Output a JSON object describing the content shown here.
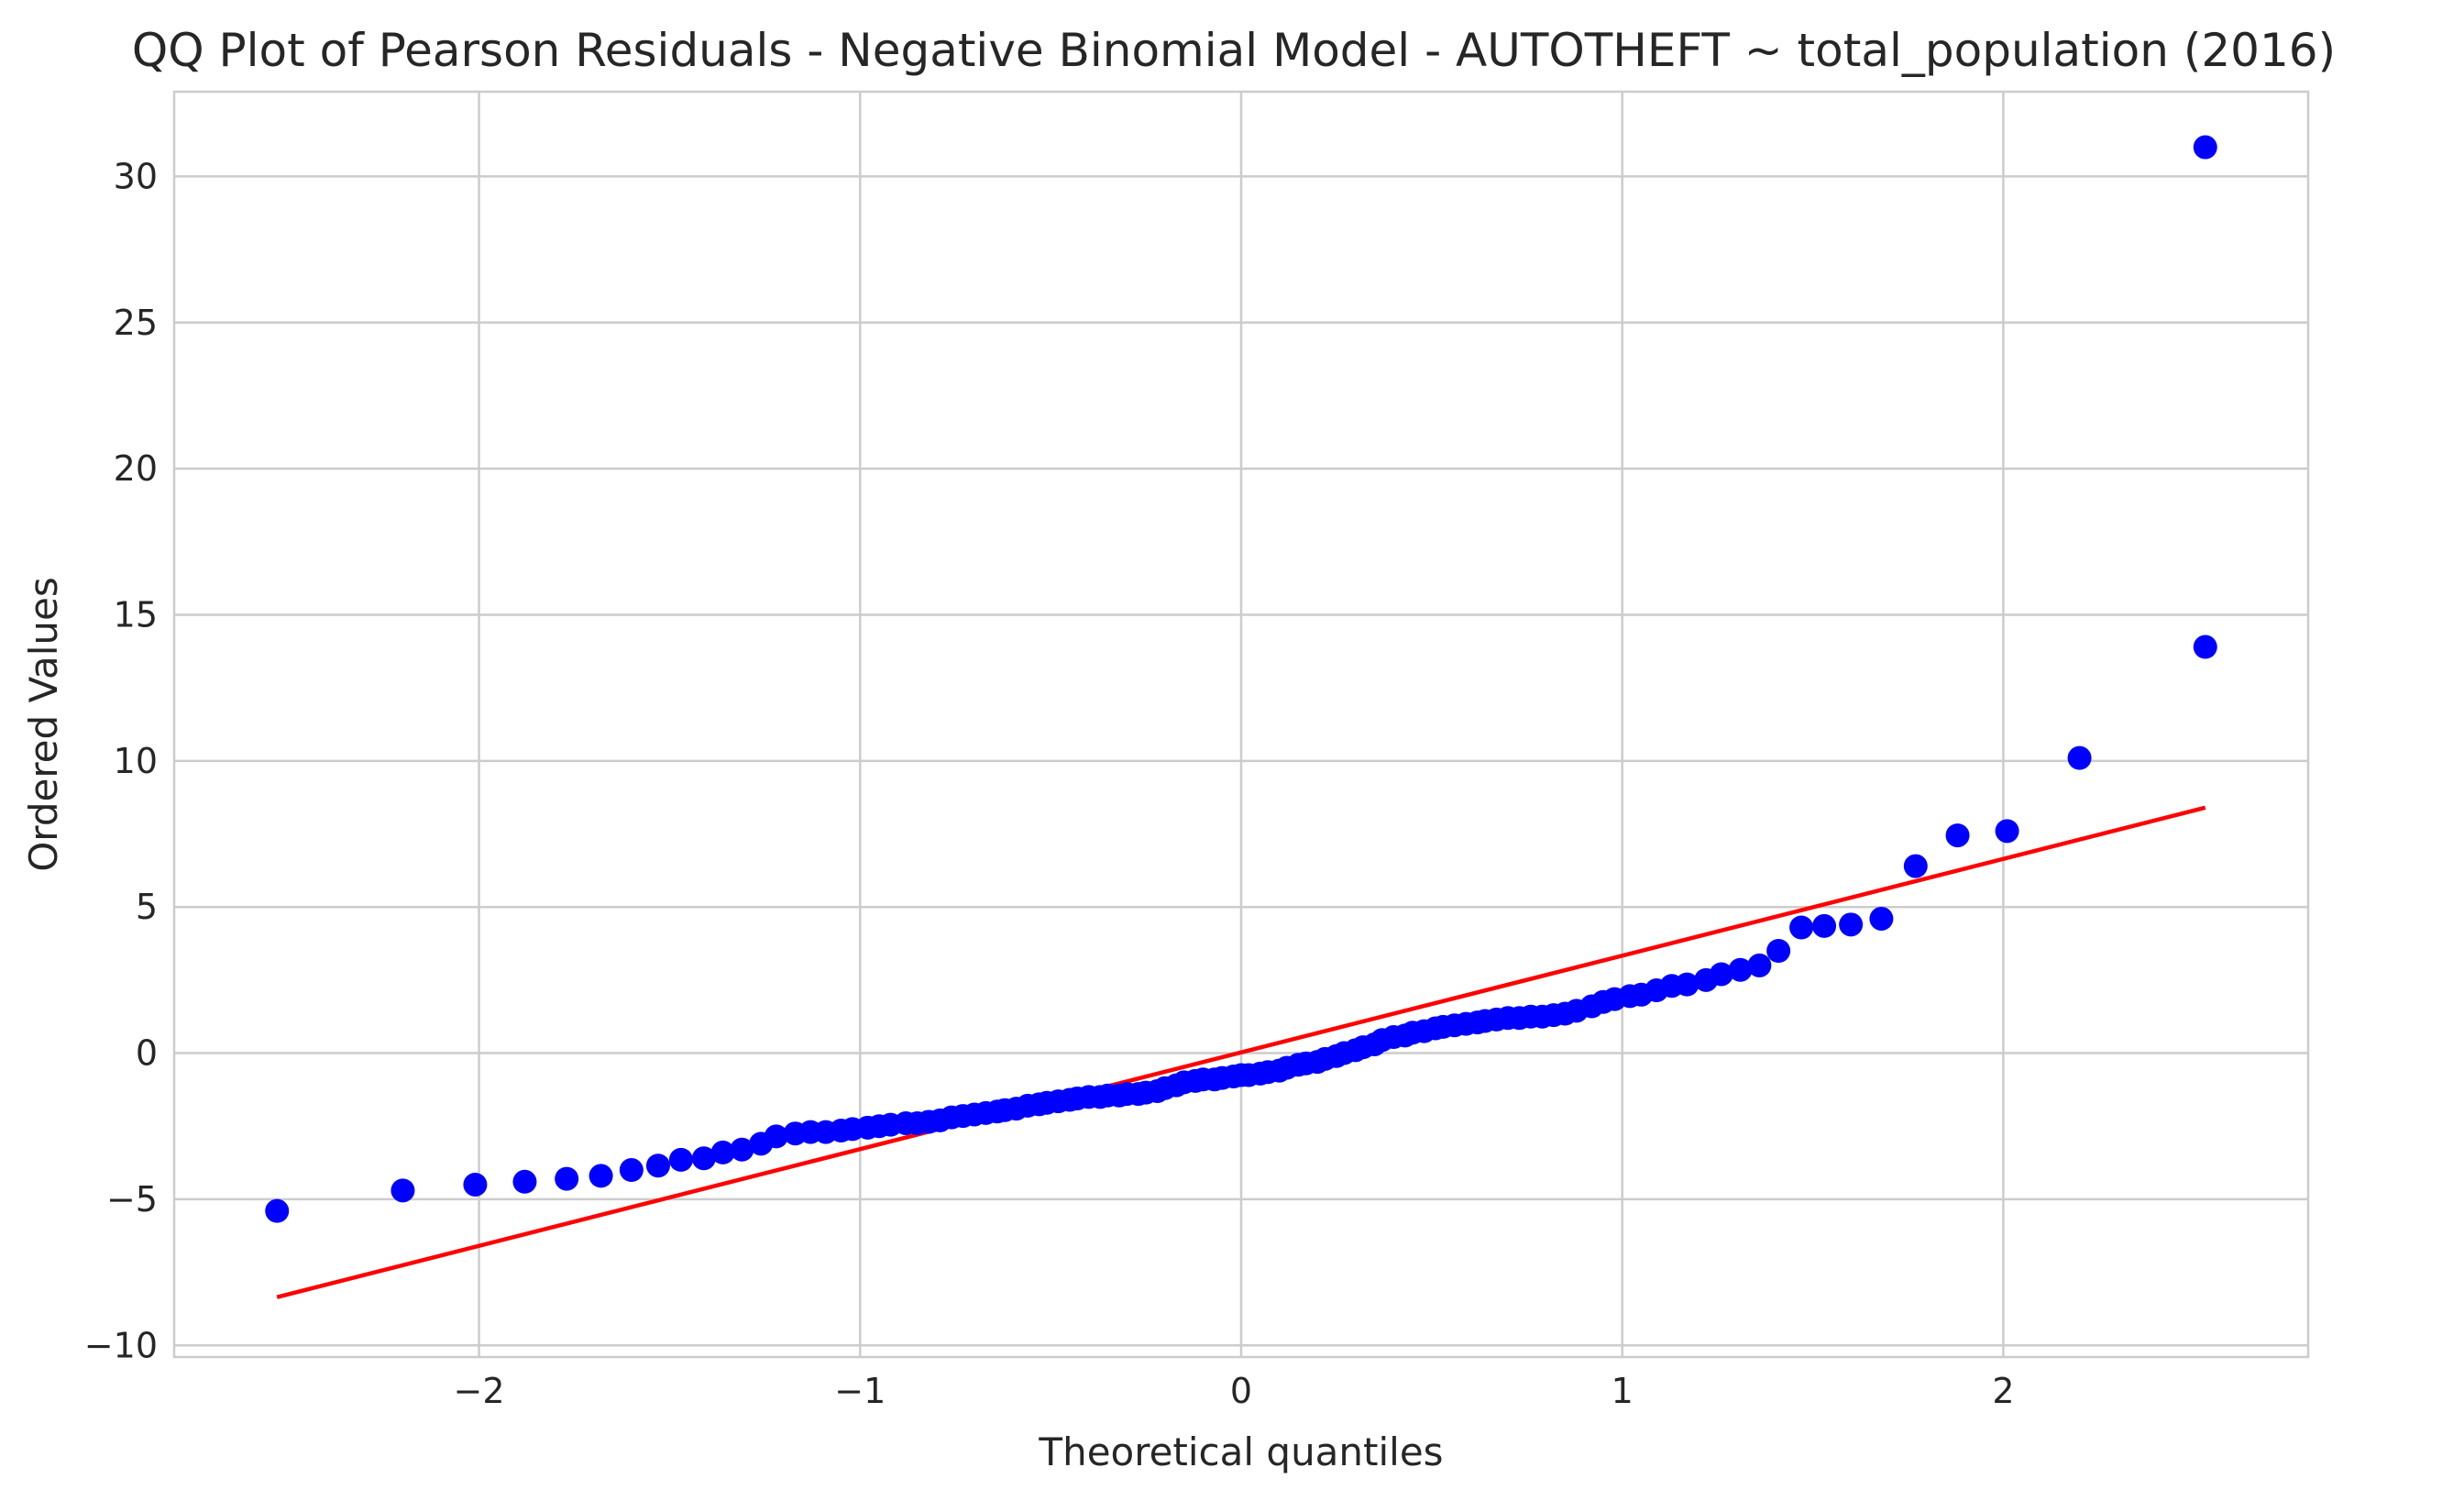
{
  "chart_data": {
    "type": "scatter",
    "title": "QQ Plot of Pearson Residuals - Negative Binomial Model - AUTOTHEFT ~ total_population (2016)",
    "xlabel": "Theoretical quantiles",
    "ylabel": "Ordered Values",
    "xlim": [
      -2.8,
      2.8
    ],
    "ylim": [
      -10.4,
      32.9
    ],
    "xticks": [
      -2,
      -1,
      0,
      1,
      2
    ],
    "xtick_labels": [
      "−2",
      "−1",
      "0",
      "1",
      "2"
    ],
    "yticks": [
      -10,
      -5,
      0,
      5,
      10,
      15,
      20,
      25,
      30
    ],
    "ytick_labels": [
      "−10",
      "−5",
      "0",
      "5",
      "10",
      "15",
      "20",
      "25",
      "30"
    ],
    "grid": true,
    "point_color": "#0000ff",
    "line_color": "#ff0000",
    "fit_line": {
      "x": [
        -2.53,
        2.53
      ],
      "y": [
        -8.35,
        8.4
      ]
    },
    "points": [
      [
        -2.53,
        -5.4
      ],
      [
        -2.2,
        -4.7
      ],
      [
        -2.01,
        -4.5
      ],
      [
        -1.88,
        -4.4
      ],
      [
        -1.77,
        -4.3
      ],
      [
        -1.68,
        -4.2
      ],
      [
        -1.6,
        -4.0
      ],
      [
        -1.53,
        -3.85
      ],
      [
        -1.47,
        -3.65
      ],
      [
        -1.41,
        -3.6
      ],
      [
        -1.36,
        -3.4
      ],
      [
        -1.31,
        -3.3
      ],
      [
        -1.26,
        -3.1
      ],
      [
        -1.22,
        -2.85
      ],
      [
        -1.17,
        -2.75
      ],
      [
        -1.13,
        -2.7
      ],
      [
        -1.09,
        -2.7
      ],
      [
        -1.05,
        -2.65
      ],
      [
        -1.02,
        -2.6
      ],
      [
        -0.98,
        -2.55
      ],
      [
        -0.95,
        -2.5
      ],
      [
        -0.92,
        -2.45
      ],
      [
        -0.88,
        -2.4
      ],
      [
        -0.85,
        -2.4
      ],
      [
        -0.82,
        -2.35
      ],
      [
        -0.79,
        -2.3
      ],
      [
        -0.76,
        -2.2
      ],
      [
        -0.73,
        -2.15
      ],
      [
        -0.7,
        -2.1
      ],
      [
        -0.67,
        -2.05
      ],
      [
        -0.64,
        -2.0
      ],
      [
        -0.62,
        -1.95
      ],
      [
        -0.59,
        -1.9
      ],
      [
        -0.56,
        -1.8
      ],
      [
        -0.53,
        -1.75
      ],
      [
        -0.51,
        -1.7
      ],
      [
        -0.48,
        -1.65
      ],
      [
        -0.45,
        -1.6
      ],
      [
        -0.43,
        -1.55
      ],
      [
        -0.4,
        -1.5
      ],
      [
        -0.37,
        -1.5
      ],
      [
        -0.35,
        -1.45
      ],
      [
        -0.32,
        -1.45
      ],
      [
        -0.3,
        -1.4
      ],
      [
        -0.27,
        -1.4
      ],
      [
        -0.25,
        -1.35
      ],
      [
        -0.22,
        -1.3
      ],
      [
        -0.2,
        -1.2
      ],
      [
        -0.17,
        -1.1
      ],
      [
        -0.15,
        -1.0
      ],
      [
        -0.12,
        -0.95
      ],
      [
        -0.1,
        -0.9
      ],
      [
        -0.07,
        -0.9
      ],
      [
        -0.05,
        -0.85
      ],
      [
        -0.02,
        -0.8
      ],
      [
        0.0,
        -0.75
      ],
      [
        0.02,
        -0.75
      ],
      [
        0.05,
        -0.7
      ],
      [
        0.07,
        -0.65
      ],
      [
        0.1,
        -0.6
      ],
      [
        0.12,
        -0.5
      ],
      [
        0.15,
        -0.4
      ],
      [
        0.17,
        -0.35
      ],
      [
        0.2,
        -0.3
      ],
      [
        0.22,
        -0.2
      ],
      [
        0.25,
        -0.1
      ],
      [
        0.27,
        0.0
      ],
      [
        0.3,
        0.1
      ],
      [
        0.32,
        0.2
      ],
      [
        0.35,
        0.3
      ],
      [
        0.37,
        0.45
      ],
      [
        0.4,
        0.55
      ],
      [
        0.43,
        0.6
      ],
      [
        0.45,
        0.7
      ],
      [
        0.48,
        0.75
      ],
      [
        0.51,
        0.85
      ],
      [
        0.53,
        0.9
      ],
      [
        0.56,
        0.95
      ],
      [
        0.59,
        1.0
      ],
      [
        0.62,
        1.05
      ],
      [
        0.64,
        1.1
      ],
      [
        0.67,
        1.15
      ],
      [
        0.7,
        1.2
      ],
      [
        0.73,
        1.2
      ],
      [
        0.76,
        1.25
      ],
      [
        0.79,
        1.25
      ],
      [
        0.82,
        1.3
      ],
      [
        0.85,
        1.35
      ],
      [
        0.88,
        1.45
      ],
      [
        0.92,
        1.6
      ],
      [
        0.95,
        1.75
      ],
      [
        0.98,
        1.85
      ],
      [
        1.02,
        1.95
      ],
      [
        1.05,
        2.0
      ],
      [
        1.09,
        2.15
      ],
      [
        1.13,
        2.3
      ],
      [
        1.17,
        2.35
      ],
      [
        1.22,
        2.5
      ],
      [
        1.26,
        2.7
      ],
      [
        1.31,
        2.85
      ],
      [
        1.36,
        3.0
      ],
      [
        1.41,
        3.5
      ],
      [
        1.47,
        4.3
      ],
      [
        1.53,
        4.35
      ],
      [
        1.6,
        4.4
      ],
      [
        1.68,
        4.6
      ],
      [
        1.77,
        6.4
      ],
      [
        1.88,
        7.45
      ],
      [
        2.01,
        7.6
      ],
      [
        2.2,
        10.1
      ],
      [
        2.53,
        13.9
      ],
      [
        2.53,
        31.0
      ]
    ]
  }
}
